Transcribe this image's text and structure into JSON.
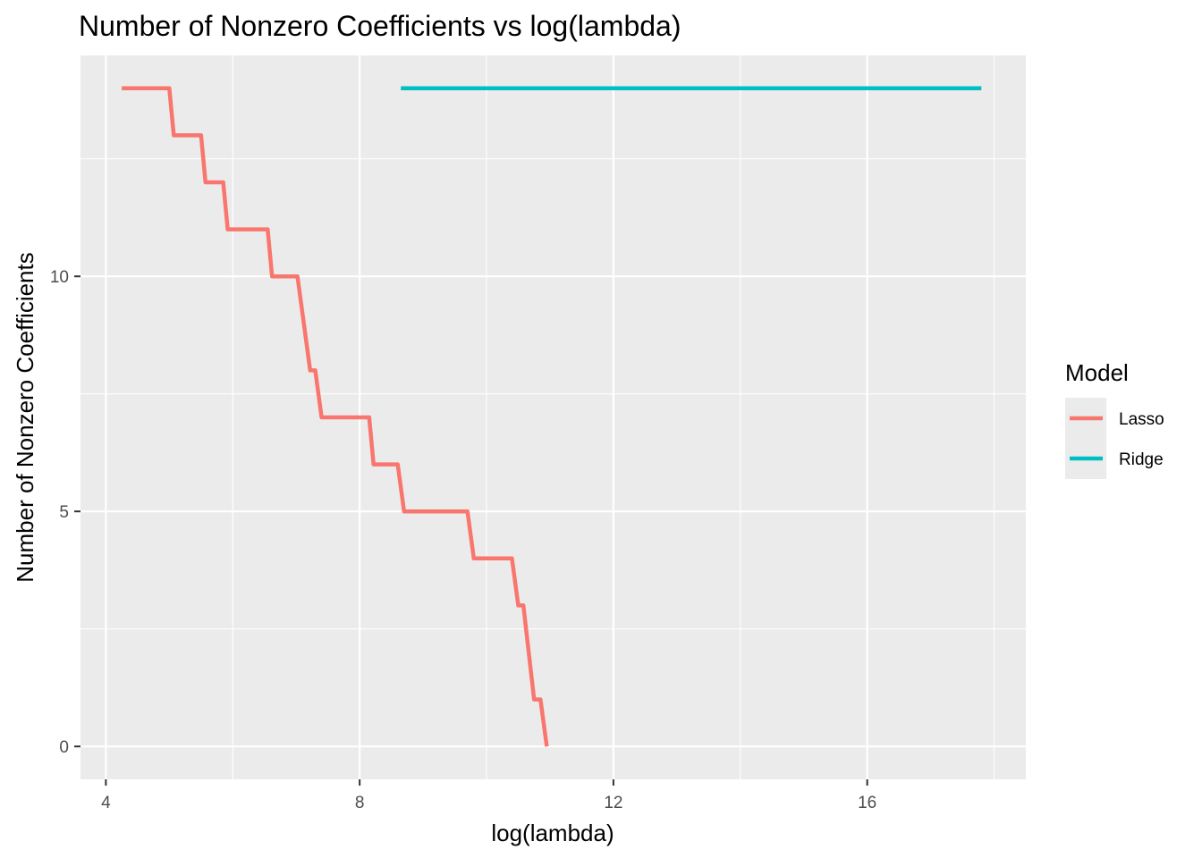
{
  "chart_data": {
    "type": "line",
    "title": "Number of Nonzero Coefficients vs log(lambda)",
    "xlabel": "log(lambda)",
    "ylabel": "Number of Nonzero Coefficients",
    "xlim": [
      3.6,
      18.5
    ],
    "ylim": [
      -0.7,
      14.7
    ],
    "x_ticks": [
      4,
      8,
      12,
      16
    ],
    "x_tick_labels": [
      "4",
      "8",
      "12",
      "16"
    ],
    "y_ticks": [
      0,
      5,
      10
    ],
    "y_tick_labels": [
      "0",
      "5",
      "10"
    ],
    "grid": true,
    "legend": {
      "title": "Model",
      "position": "right"
    },
    "series": [
      {
        "name": "Lasso",
        "color": "#F8766D",
        "x": [
          4.25,
          5.0,
          5.07,
          5.5,
          5.57,
          5.85,
          5.92,
          6.55,
          6.62,
          7.02,
          7.22,
          7.3,
          7.4,
          8.15,
          8.22,
          8.6,
          8.7,
          9.7,
          9.8,
          10.4,
          10.5,
          10.58,
          10.75,
          10.85,
          10.95
        ],
        "values": [
          14,
          14,
          13,
          13,
          12,
          12,
          11,
          11,
          10,
          10,
          8,
          8,
          7,
          7,
          6,
          6,
          5,
          5,
          4,
          4,
          3,
          3,
          1,
          1,
          0
        ]
      },
      {
        "name": "Ridge",
        "color": "#00BFC4",
        "x": [
          8.65,
          17.8
        ],
        "values": [
          14,
          14
        ]
      }
    ]
  }
}
